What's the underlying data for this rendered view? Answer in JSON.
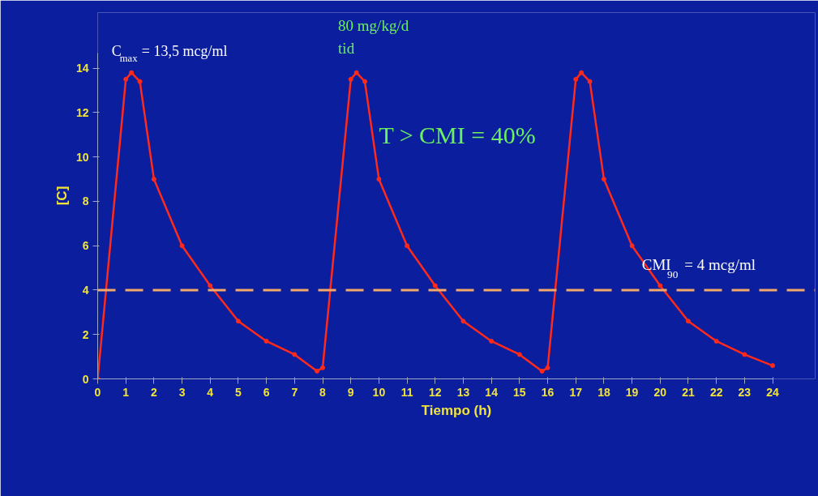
{
  "chart_data": {
    "type": "line",
    "xlabel": "Tiempo (h)",
    "ylabel": "[C]",
    "x": [
      0,
      1,
      1.2,
      1.5,
      2,
      3,
      4,
      5,
      6,
      7,
      7.8,
      8,
      9,
      9.2,
      9.5,
      10,
      11,
      12,
      13,
      14,
      15,
      15.8,
      16,
      17,
      17.2,
      17.5,
      18,
      19,
      20,
      21,
      22,
      23,
      24
    ],
    "series": [
      {
        "color": "#ff2a1a",
        "values": [
          0,
          13.5,
          13.8,
          13.4,
          9,
          6,
          4.2,
          2.6,
          1.7,
          1.1,
          0.35,
          0.5,
          13.5,
          13.8,
          13.4,
          9,
          6,
          4.2,
          2.6,
          1.7,
          1.1,
          0.35,
          0.5,
          13.5,
          13.8,
          13.4,
          9,
          6,
          4.2,
          2.6,
          1.7,
          1.1,
          0.6
        ]
      }
    ],
    "marker": "circle",
    "line_style": "solid",
    "grid": false,
    "xlim": [
      0,
      24
    ],
    "ylim": [
      0,
      14.7
    ],
    "xticks": [
      0,
      1,
      2,
      3,
      4,
      5,
      6,
      7,
      8,
      9,
      10,
      11,
      12,
      13,
      14,
      15,
      16,
      17,
      18,
      19,
      20,
      21,
      22,
      23,
      24
    ],
    "yticks": [
      0,
      2,
      4,
      6,
      8,
      10,
      12,
      14
    ],
    "ref_lines": [
      {
        "axis": "y",
        "value": 4,
        "label": "CMI$_{90}$ = 4 mcg/ml",
        "color": "#f4a868",
        "line_style": "dashed"
      }
    ],
    "annotations": [
      {
        "text": "C$_{max}$ = 13,5 mcg/ml",
        "x": 1.2,
        "y": 13.8
      },
      "80 mg/kg/d",
      "tid",
      "T > CMI = 40%"
    ]
  }
}
